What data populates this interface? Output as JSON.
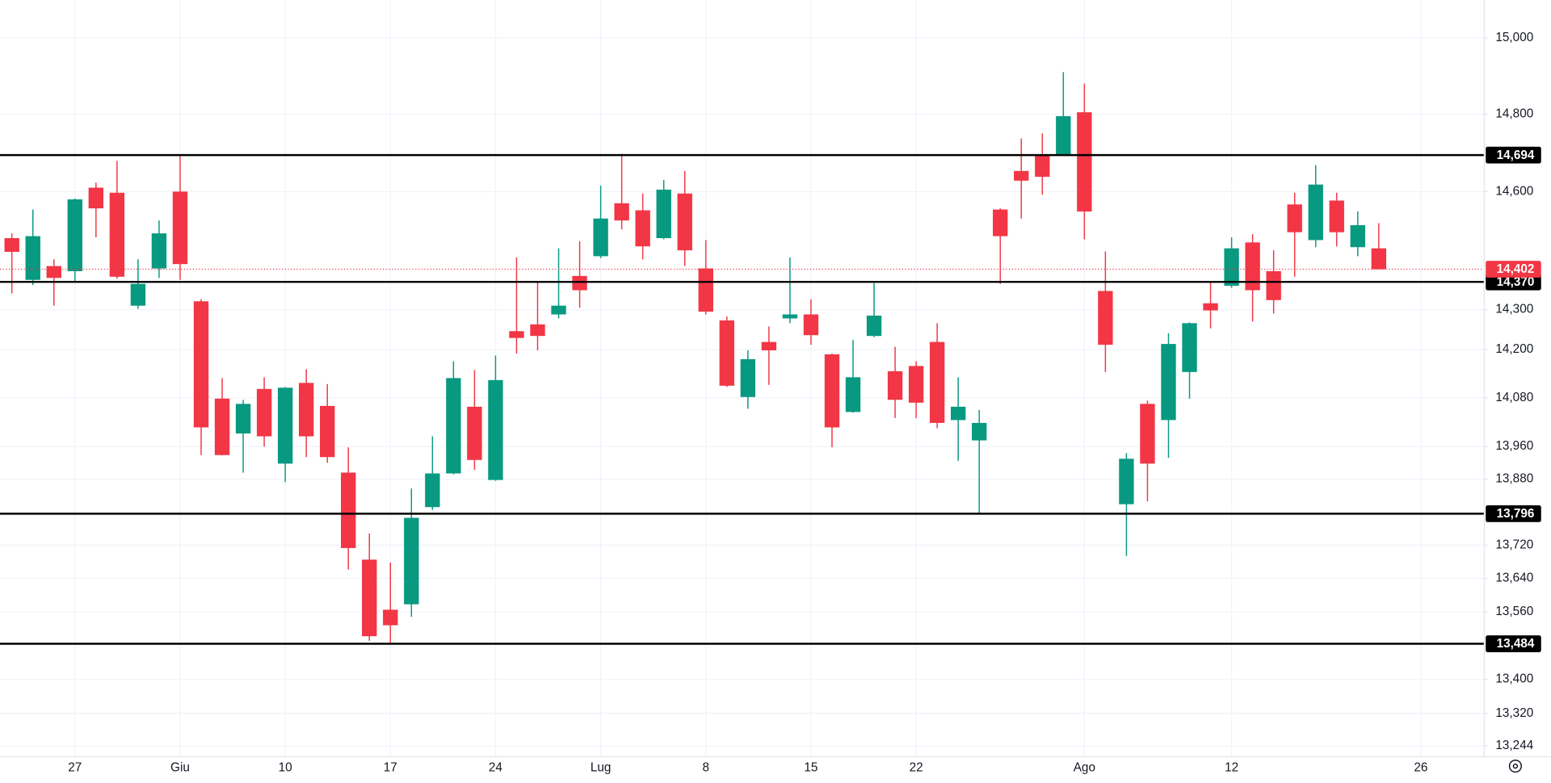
{
  "chart_data": {
    "type": "candlestick",
    "up_color": "#089981",
    "down_color": "#f23645",
    "log": true,
    "grid": true,
    "ylim": [
      13220,
      15100
    ],
    "yticks": [
      {
        "value": 15000,
        "label": "15,000"
      },
      {
        "value": 14800,
        "label": "14,800"
      },
      {
        "value": 14600,
        "label": "14,600"
      },
      {
        "value": 14300,
        "label": "14,300"
      },
      {
        "value": 14200,
        "label": "14,200"
      },
      {
        "value": 14080,
        "label": "14,080"
      },
      {
        "value": 13960,
        "label": "13,960"
      },
      {
        "value": 13880,
        "label": "13,880"
      },
      {
        "value": 13720,
        "label": "13,720"
      },
      {
        "value": 13640,
        "label": "13,640"
      },
      {
        "value": 13560,
        "label": "13,560"
      },
      {
        "value": 13400,
        "label": "13,400"
      },
      {
        "value": 13320,
        "label": "13,320"
      },
      {
        "value": 13244,
        "label": "13,244"
      }
    ],
    "levels": [
      {
        "value": 14694,
        "label": "14,694"
      },
      {
        "value": 14370,
        "label": "14,370"
      },
      {
        "value": 13796,
        "label": "13,796"
      },
      {
        "value": 13484,
        "label": "13,484"
      }
    ],
    "last_price": {
      "value": 14402,
      "label": "14,402",
      "color": "#f23645"
    },
    "categories": [
      null,
      null,
      null,
      "27",
      null,
      null,
      null,
      null,
      "Giu",
      null,
      null,
      null,
      null,
      "10",
      null,
      null,
      null,
      null,
      "17",
      null,
      null,
      null,
      null,
      "24",
      null,
      null,
      null,
      null,
      "Lug",
      null,
      null,
      null,
      null,
      "8",
      null,
      null,
      null,
      null,
      "15",
      null,
      null,
      null,
      null,
      "22",
      null,
      null,
      null,
      null,
      null,
      null,
      null,
      "Ago",
      null,
      null,
      null,
      null,
      null,
      null,
      "12",
      null,
      null,
      null,
      null,
      null,
      null,
      null,
      null,
      "26",
      null,
      null
    ],
    "open": [
      14481,
      14375,
      14410,
      14397,
      14610,
      14597,
      14310,
      14404,
      14600,
      14321,
      14078,
      13992,
      14102,
      13918,
      14117,
      14060,
      13896,
      13685,
      13565,
      13578,
      13812,
      13894,
      14058,
      13878,
      14246,
      14263,
      14288,
      14385,
      14435,
      14570,
      14552,
      14481,
      14595,
      14404,
      14273,
      14082,
      14219,
      14278,
      14288,
      14188,
      14045,
      14234,
      14146,
      14159,
      14219,
      14025,
      13975,
      14554,
      14653,
      14694,
      14694,
      14805,
      14347,
      13819,
      14065,
      14025,
      14144,
      14316,
      14360,
      14470,
      14397,
      14567,
      14476,
      14577,
      14458,
      14455,
      null,
      null,
      null,
      null
    ],
    "high": [
      14493,
      14554,
      14427,
      14582,
      14623,
      14679,
      14427,
      14526,
      14691,
      14326,
      14129,
      14075,
      14131,
      14107,
      14151,
      14114,
      13958,
      13748,
      13678,
      13857,
      13985,
      14171,
      14149,
      14185,
      14432,
      14370,
      14455,
      14473,
      14615,
      14697,
      14595,
      14630,
      14653,
      14476,
      14283,
      14198,
      14258,
      14432,
      14326,
      14190,
      14224,
      14367,
      14207,
      14171,
      14266,
      14131,
      14050,
      14557,
      14737,
      14750,
      14910,
      14880,
      14447,
      13944,
      14073,
      14241,
      14268,
      14372,
      14483,
      14491,
      14450,
      14597,
      14668,
      14597,
      14549,
      14519,
      null,
      null,
      null,
      null
    ],
    "low": [
      14341,
      14362,
      14310,
      14370,
      14483,
      14378,
      14302,
      14380,
      14375,
      13939,
      13938,
      13896,
      13960,
      13873,
      13934,
      13920,
      13661,
      13491,
      13482,
      13548,
      13805,
      13892,
      13903,
      13876,
      14190,
      14198,
      14278,
      14305,
      14430,
      14503,
      14427,
      14478,
      14410,
      14288,
      14107,
      14053,
      14112,
      14266,
      14212,
      13958,
      14043,
      14231,
      14030,
      14030,
      14005,
      13925,
      13798,
      14365,
      14531,
      14592,
      14692,
      14478,
      14144,
      13694,
      13826,
      13932,
      14078,
      14253,
      14355,
      14270,
      14290,
      14383,
      14458,
      14460,
      14435,
      14402,
      null,
      null,
      null,
      null
    ],
    "close": [
      14446,
      14486,
      14380,
      14580,
      14557,
      14383,
      14365,
      14493,
      14415,
      14007,
      13939,
      14065,
      13985,
      14105,
      13985,
      13934,
      13713,
      13502,
      13528,
      13786,
      13894,
      14129,
      13927,
      14124,
      14229,
      14234,
      14310,
      14349,
      14531,
      14526,
      14460,
      14605,
      14450,
      14295,
      14110,
      14176,
      14198,
      14288,
      14236,
      14007,
      14131,
      14285,
      14075,
      14068,
      14018,
      14058,
      14018,
      14486,
      14628,
      14638,
      14795,
      14549,
      14212,
      13930,
      13918,
      14214,
      14266,
      14298,
      14455,
      14349,
      14324,
      14496,
      14618,
      14496,
      14514,
      14402,
      null,
      null,
      null,
      null
    ]
  }
}
